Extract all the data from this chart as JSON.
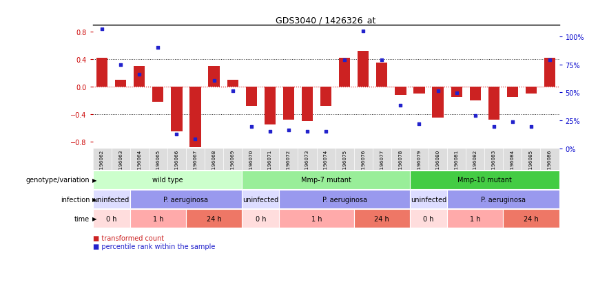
{
  "title": "GDS3040 / 1426326_at",
  "samples": [
    "GSM196062",
    "GSM196063",
    "GSM196064",
    "GSM196065",
    "GSM196066",
    "GSM196067",
    "GSM196068",
    "GSM196069",
    "GSM196070",
    "GSM196071",
    "GSM196072",
    "GSM196073",
    "GSM196074",
    "GSM196075",
    "GSM196076",
    "GSM196077",
    "GSM196078",
    "GSM196079",
    "GSM196080",
    "GSM196081",
    "GSM196082",
    "GSM196083",
    "GSM196084",
    "GSM196085",
    "GSM196086"
  ],
  "bar_values": [
    0.42,
    0.1,
    0.3,
    -0.22,
    -0.65,
    -0.88,
    0.3,
    0.1,
    -0.28,
    -0.55,
    -0.48,
    -0.5,
    -0.28,
    0.42,
    0.52,
    0.35,
    -0.12,
    -0.1,
    -0.45,
    -0.15,
    -0.2,
    -0.48,
    -0.15,
    -0.1,
    0.42
  ],
  "dot_values": [
    97,
    68,
    60,
    82,
    12,
    8,
    55,
    47,
    18,
    14,
    15,
    14,
    14,
    72,
    95,
    72,
    35,
    20,
    47,
    45,
    27,
    18,
    22,
    18,
    72
  ],
  "bar_color": "#cc2222",
  "dot_color": "#2222cc",
  "ylim_left": [
    -0.9,
    0.9
  ],
  "ylim_right": [
    0,
    110
  ],
  "yticks_left": [
    -0.8,
    -0.4,
    0.0,
    0.4,
    0.8
  ],
  "yticks_right": [
    0,
    25,
    50,
    75,
    100
  ],
  "yticklabels_right": [
    "0%",
    "25%",
    "50%",
    "75%",
    "100%"
  ],
  "hline0_color": "#cc0000",
  "hline_color": "#333333",
  "genotype_groups": [
    {
      "label": "wild type",
      "start": 0,
      "end": 8,
      "color": "#ccffcc"
    },
    {
      "label": "Mmp-7 mutant",
      "start": 8,
      "end": 17,
      "color": "#99ee99"
    },
    {
      "label": "Mmp-10 mutant",
      "start": 17,
      "end": 25,
      "color": "#44cc44"
    }
  ],
  "infection_groups": [
    {
      "label": "uninfected",
      "start": 0,
      "end": 2,
      "color": "#ddddff"
    },
    {
      "label": "P. aeruginosa",
      "start": 2,
      "end": 8,
      "color": "#9999ee"
    },
    {
      "label": "uninfected",
      "start": 8,
      "end": 10,
      "color": "#ddddff"
    },
    {
      "label": "P. aeruginosa",
      "start": 10,
      "end": 17,
      "color": "#9999ee"
    },
    {
      "label": "uninfected",
      "start": 17,
      "end": 19,
      "color": "#ddddff"
    },
    {
      "label": "P. aeruginosa",
      "start": 19,
      "end": 25,
      "color": "#9999ee"
    }
  ],
  "time_groups": [
    {
      "label": "0 h",
      "start": 0,
      "end": 2,
      "color": "#ffdddd"
    },
    {
      "label": "1 h",
      "start": 2,
      "end": 5,
      "color": "#ffaaaa"
    },
    {
      "label": "24 h",
      "start": 5,
      "end": 8,
      "color": "#ee7766"
    },
    {
      "label": "0 h",
      "start": 8,
      "end": 10,
      "color": "#ffdddd"
    },
    {
      "label": "1 h",
      "start": 10,
      "end": 14,
      "color": "#ffaaaa"
    },
    {
      "label": "24 h",
      "start": 14,
      "end": 17,
      "color": "#ee7766"
    },
    {
      "label": "0 h",
      "start": 17,
      "end": 19,
      "color": "#ffdddd"
    },
    {
      "label": "1 h",
      "start": 19,
      "end": 22,
      "color": "#ffaaaa"
    },
    {
      "label": "24 h",
      "start": 22,
      "end": 25,
      "color": "#ee7766"
    }
  ],
  "row_labels": [
    "genotype/variation",
    "infection",
    "time"
  ],
  "legend_items": [
    {
      "color": "#cc2222",
      "label": "transformed count"
    },
    {
      "color": "#2222cc",
      "label": "percentile rank within the sample"
    }
  ],
  "bg_color": "#ffffff",
  "left_label_color": "#cc0000",
  "right_label_color": "#0000cc",
  "xtick_area_color": "#dddddd"
}
